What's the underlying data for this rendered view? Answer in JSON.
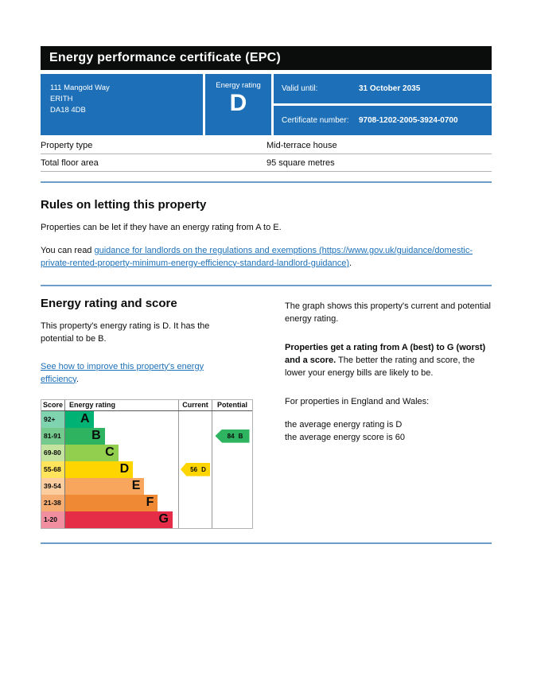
{
  "colors": {
    "govuk_blue": "#1d70b8",
    "bar_black": "#0b0c0c",
    "link_blue": "#1d70b8",
    "divider_blue": "#6d9eca",
    "border_grey": "#b1b4b6",
    "text": "#0b0c0c"
  },
  "certificate": {
    "title": "Energy performance certificate (EPC)",
    "address_line1": "111 Mangold Way",
    "address_line2": "ERITH",
    "address_line3": "DA18 4DB",
    "energy_rating_label": "Energy rating",
    "energy_rating": "D",
    "valid_until_label": "Valid until:",
    "valid_until_value": "31 October 2035",
    "certificate_number_label": "Certificate number:",
    "certificate_number_value": "9708-1202-2005-3924-0700"
  },
  "summary": {
    "rows": [
      {
        "label": "Property type",
        "value": "Mid-terrace house"
      },
      {
        "label": "Total floor area",
        "value": "95 square metres"
      }
    ]
  },
  "rules_section": {
    "heading": "Rules on letting this property",
    "paragraph1": "Properties can be let if they have an energy rating from A to E.",
    "paragraph2_prefix": "You can read ",
    "link_text": "guidance for landlords on the regulations and exemptions (https://www.gov.uk/guidance/domestic-private-rented-property-minimum-energy-efficiency-standard-landlord-guidance)",
    "paragraph2_suffix": "."
  },
  "rating_section": {
    "heading": "Energy rating and score",
    "paragraph1": "This property's energy rating is D. It has the potential to be B.",
    "improve_link_text": "See how to improve this property's energy efficiency",
    "improve_link_suffix": ".",
    "right_paragraph1": "The graph shows this property's current and potential energy rating.",
    "right_paragraph2_bold": "Properties get a rating from A (best) to G (worst) and a score.",
    "right_paragraph2_rest": " The better the rating and score, the lower your energy bills are likely to be.",
    "right_paragraph3": "For properties in England and Wales:",
    "right_line1": "the average energy rating is D",
    "right_line2": "the average energy score is 60"
  },
  "chart_data": {
    "type": "bar",
    "title": "Energy rating and score graph",
    "headers": {
      "score": "Score",
      "rating": "Energy rating",
      "current": "Current",
      "potential": "Potential"
    },
    "bands": [
      {
        "score_range": "92+",
        "letter": "A",
        "bar_color": "#00b274",
        "tint_color": "#7fd3ae",
        "width_pct": 25
      },
      {
        "score_range": "81-91",
        "letter": "B",
        "bar_color": "#2eb360",
        "tint_color": "#74c98d",
        "width_pct": 35
      },
      {
        "score_range": "69-80",
        "letter": "C",
        "bar_color": "#92cf4f",
        "tint_color": "#c3e39e",
        "width_pct": 47
      },
      {
        "score_range": "55-68",
        "letter": "D",
        "bar_color": "#ffd500",
        "tint_color": "#ffe45c",
        "width_pct": 60
      },
      {
        "score_range": "39-54",
        "letter": "E",
        "bar_color": "#f8a65d",
        "tint_color": "#fbcd9f",
        "width_pct": 70
      },
      {
        "score_range": "21-38",
        "letter": "F",
        "bar_color": "#ef8933",
        "tint_color": "#f5ad72",
        "width_pct": 82
      },
      {
        "score_range": "1-20",
        "letter": "G",
        "bar_color": "#e52d47",
        "tint_color": "#f18fa0",
        "width_pct": 95
      }
    ],
    "current": {
      "value": "56",
      "letter": "D",
      "color": "#ffd500",
      "band_index": 3
    },
    "potential": {
      "value": "84",
      "letter": "B",
      "color": "#2eb360",
      "band_index": 1
    }
  }
}
